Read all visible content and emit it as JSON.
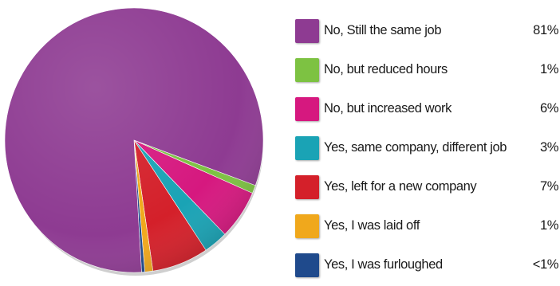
{
  "chart_data": {
    "type": "pie",
    "slices": [
      {
        "label": "No, Still the same job",
        "value_label": "81%",
        "value": 81,
        "color": "#8e3b92"
      },
      {
        "label": "No, but reduced hours",
        "value_label": "1%",
        "value": 1,
        "color": "#7dc242"
      },
      {
        "label": "No, but increased work",
        "value_label": "6%",
        "value": 6,
        "color": "#d6187f"
      },
      {
        "label": "Yes, same company, different job",
        "value_label": "3%",
        "value": 3,
        "color": "#1aa3b5"
      },
      {
        "label": "Yes, left for a new company",
        "value_label": "7%",
        "value": 7,
        "color": "#d4202a"
      },
      {
        "label": "Yes, I was laid off",
        "value_label": "1%",
        "value": 1,
        "color": "#f0a81c"
      },
      {
        "label": "Yes, I was furloughed",
        "value_label": "<1%",
        "value": 0.4,
        "color": "#1f4a8c"
      }
    ],
    "legend_position": "right"
  }
}
